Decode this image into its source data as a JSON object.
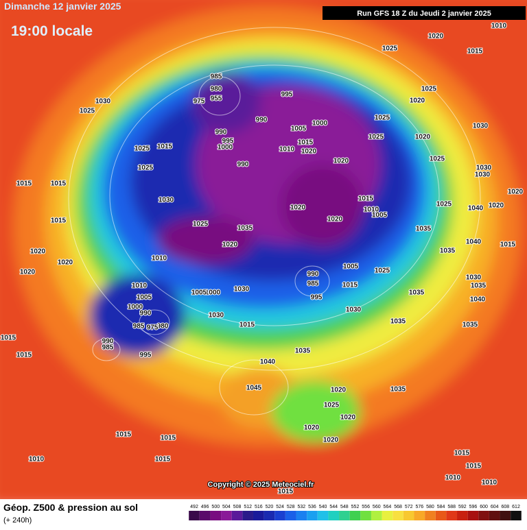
{
  "header": {
    "date": "Dimanche 12 janvier 2025",
    "time": "19:00 locale",
    "run": "Run GFS 18 Z du Jeudi 2 janvier 2025"
  },
  "copyright": "Copyright © 2025 Meteociel.fr",
  "footer": {
    "title": "Géop. Z500 & pression au sol",
    "lead": "(+ 240h)"
  },
  "colorbar": {
    "labels": [
      492,
      496,
      500,
      504,
      508,
      512,
      516,
      520,
      524,
      528,
      532,
      536,
      540,
      544,
      548,
      552,
      556,
      560,
      564,
      568,
      572,
      576,
      580,
      584,
      588,
      592,
      596,
      600,
      604,
      608,
      612
    ],
    "colors": [
      "#3a0a4a",
      "#5a0a6a",
      "#780c80",
      "#8a1a98",
      "#5a1a9a",
      "#2a1a8a",
      "#1a1a9a",
      "#1a2ab0",
      "#1a40d0",
      "#1a60e8",
      "#1a80f0",
      "#1aa0f0",
      "#20c0e8",
      "#20d0c0",
      "#30d090",
      "#40d050",
      "#70e040",
      "#b0f040",
      "#e8f040",
      "#f8e040",
      "#f8c830",
      "#f8a828",
      "#f08020",
      "#e85818",
      "#e03818",
      "#c82010",
      "#a81010",
      "#801010",
      "#601010",
      "#401010",
      "#101010"
    ]
  },
  "isobar_labels": [
    "1030",
    "1025",
    "1025",
    "1015",
    "1025",
    "1015",
    "1015",
    "1030",
    "1015",
    "1020",
    "1020",
    "1020",
    "1010",
    "1010",
    "1005",
    "1000",
    "990",
    "980",
    "985",
    "975",
    "990",
    "985",
    "995",
    "1015",
    "1015",
    "985",
    "980",
    "975",
    "955",
    "990",
    "995",
    "1000",
    "990",
    "995",
    "990",
    "1005",
    "1000",
    "1015",
    "1010",
    "1020",
    "1020",
    "1020",
    "1020",
    "1015",
    "1010",
    "1005",
    "1025",
    "1035",
    "1020",
    "1030",
    "1000",
    "1005",
    "990",
    "985",
    "995",
    "1005",
    "1015",
    "1025",
    "1030",
    "1030",
    "1015",
    "1035",
    "1040",
    "1045",
    "1020",
    "1025",
    "1020",
    "1020",
    "1020",
    "1015",
    "1015",
    "1015",
    "1010",
    "1015",
    "1035",
    "1035",
    "1035",
    "1035",
    "1035",
    "1025",
    "1020",
    "1025",
    "1025",
    "1020",
    "1025",
    "1025",
    "1025",
    "1020",
    "1015",
    "1010",
    "1030",
    "1030",
    "1030",
    "1020",
    "1040",
    "1020",
    "1040",
    "1030",
    "1035",
    "1040",
    "1035",
    "1015",
    "1015",
    "1015",
    "1010",
    "1010"
  ]
}
